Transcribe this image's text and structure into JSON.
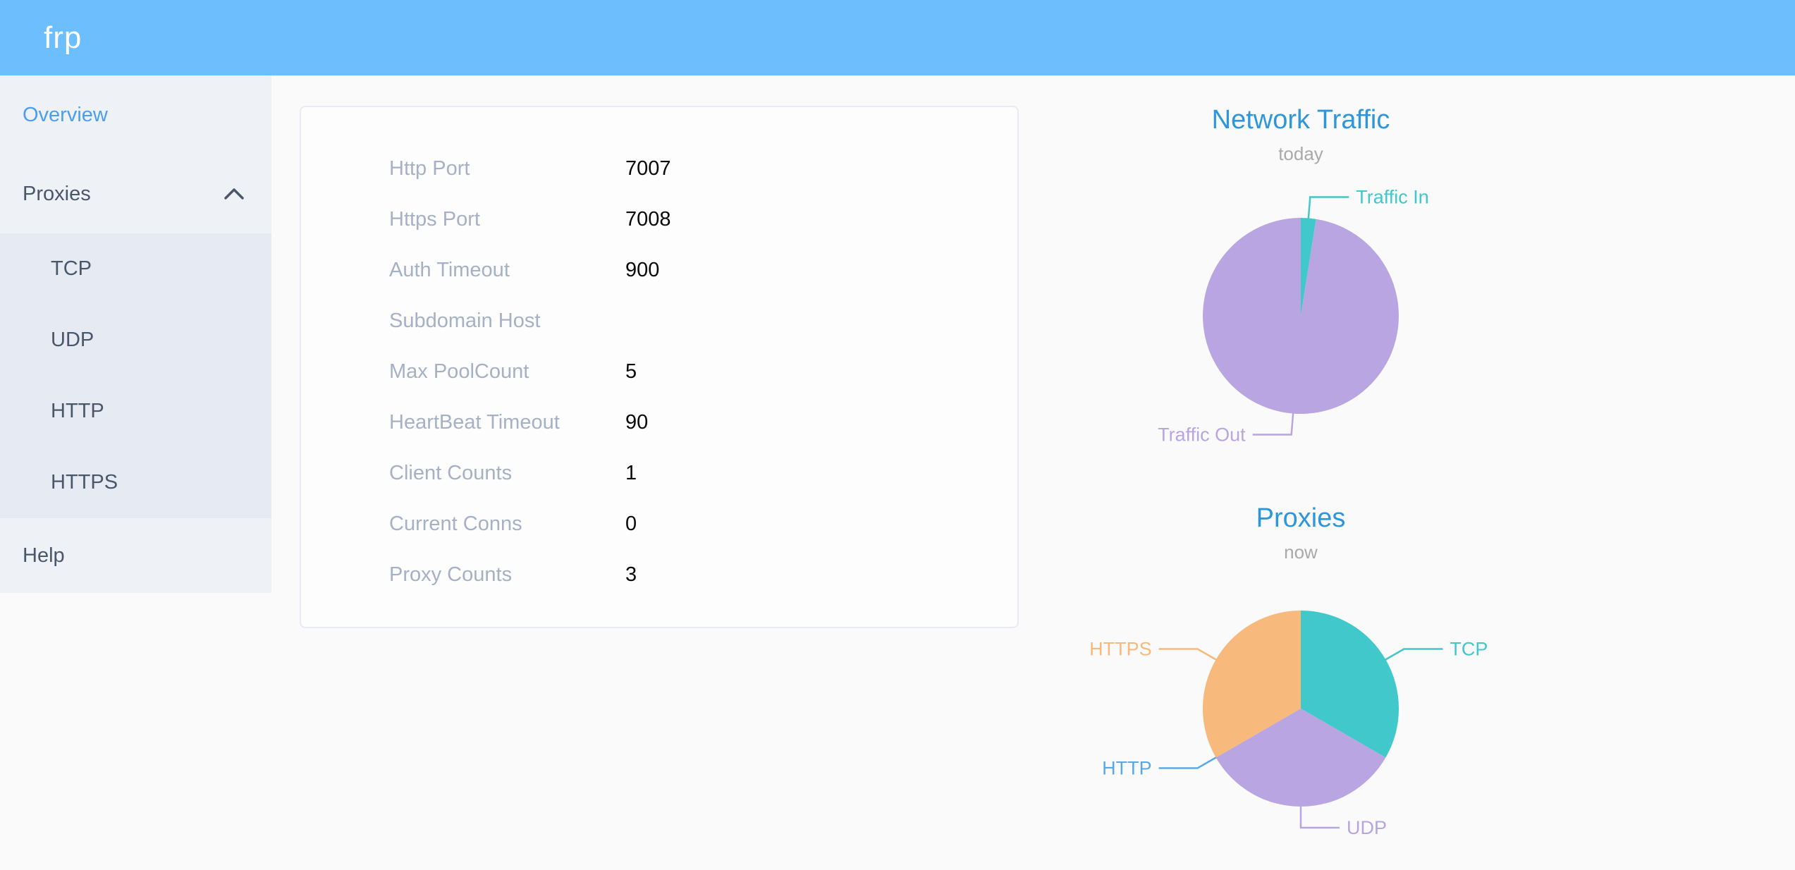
{
  "app": {
    "logo": "frp"
  },
  "header_color": "#6dbefc",
  "sidebar": {
    "items": [
      {
        "label": "Overview",
        "active": true
      },
      {
        "label": "Proxies",
        "expanded": true,
        "icon": "chevron-up",
        "children": [
          "TCP",
          "UDP",
          "HTTP",
          "HTTPS"
        ]
      },
      {
        "label": "Help"
      }
    ]
  },
  "overview_card": {
    "rows": [
      {
        "label": "Http Port",
        "value": "7007"
      },
      {
        "label": "Https Port",
        "value": "7008"
      },
      {
        "label": "Auth Timeout",
        "value": "900"
      },
      {
        "label": "Subdomain Host",
        "value": ""
      },
      {
        "label": "Max PoolCount",
        "value": "5"
      },
      {
        "label": "HeartBeat Timeout",
        "value": "90"
      },
      {
        "label": "Client Counts",
        "value": "1"
      },
      {
        "label": "Current Conns",
        "value": "0"
      },
      {
        "label": "Proxy Counts",
        "value": "3"
      }
    ]
  },
  "chart_data": [
    {
      "type": "pie",
      "title": "Network Traffic",
      "subtitle": "today",
      "legend_position": "none",
      "value_unit": "percent-estimate",
      "series": [
        {
          "name": "Traffic In",
          "value": 2.5,
          "color": "#41c8ca"
        },
        {
          "name": "Traffic Out",
          "value": 97.5,
          "color": "#b8a5e1"
        }
      ]
    },
    {
      "type": "pie",
      "title": "Proxies",
      "subtitle": "now",
      "legend_position": "none",
      "value_unit": "proxy-count",
      "series": [
        {
          "name": "TCP",
          "value": 1,
          "color": "#41c8ca"
        },
        {
          "name": "UDP",
          "value": 1,
          "color": "#b8a5e1"
        },
        {
          "name": "HTTP",
          "value": 0,
          "color": "#58a9e8"
        },
        {
          "name": "HTTPS",
          "value": 1,
          "color": "#f7ba7c"
        }
      ]
    }
  ],
  "colors": {
    "accent_blue": "#4a9ff0",
    "chart_title_blue": "#2e96db",
    "sidebar_bg": "#eef1f6",
    "submenu_bg": "#e6eaf3",
    "teal": "#41c8ca",
    "purple": "#b8a5e1",
    "blue": "#58a9e8",
    "orange": "#f7ba7c"
  }
}
